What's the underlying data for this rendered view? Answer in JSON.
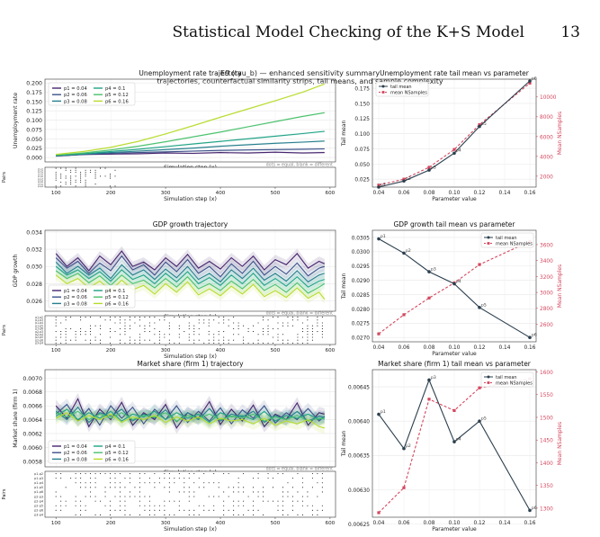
{
  "header": {
    "running_title": "Statistical Model Checking of the K+S Model",
    "page_number": "13"
  },
  "figure": {
    "title_line1": "E9 (tau_b) — enhanced sensitivity summary",
    "title_line2": "trajectories, counterfactual similarity strips, tail means, and sample complexity",
    "strip_legend": "dots = equal, blank = different",
    "strip_ylabel": "Pairs",
    "strip_pairs": [
      "p1-p2",
      "p1-p3",
      "p1-p4",
      "p1-p5",
      "p1-p6",
      "p2-p3",
      "p2-p4",
      "p2-p5",
      "p2-p6",
      "p3-p4"
    ],
    "step_label": "Simulation step (x)",
    "param_label": "Parameter value"
  },
  "colors": {
    "p1": "#46246e",
    "p2": "#3d528a",
    "p3": "#277f8e",
    "p4": "#20a386",
    "p5": "#4ac16d",
    "p6": "#b6dc2b",
    "tail": "#2b3f4e",
    "samples": "#d4465e"
  },
  "chart_data": [
    {
      "type": "line",
      "title": "Unemployment rate trajectory",
      "xlabel": "Simulation step (x)",
      "ylabel": "Unemployment rate",
      "xlim": [
        80,
        610
      ],
      "ylim": [
        -0.012,
        0.21
      ],
      "xticks": [
        "100",
        "200",
        "300",
        "400",
        "500",
        "600"
      ],
      "yticks": [
        "0.000",
        "0.025",
        "0.050",
        "0.075",
        "0.100",
        "0.125",
        "0.150",
        "0.175",
        "0.200"
      ],
      "ytick_values": [
        0,
        0.025,
        0.05,
        0.075,
        0.1,
        0.125,
        0.15,
        0.175,
        0.2
      ],
      "grid": true,
      "legend": "top-left",
      "x": [
        100,
        150,
        200,
        250,
        300,
        350,
        400,
        450,
        500,
        550,
        590
      ],
      "series": [
        {
          "name": "p1 = 0.04",
          "values": [
            0.004,
            0.008,
            0.009,
            0.01,
            0.012,
            0.011,
            0.013,
            0.012,
            0.014,
            0.012,
            0.013
          ]
        },
        {
          "name": "p2 = 0.06",
          "values": [
            0.004,
            0.008,
            0.011,
            0.013,
            0.015,
            0.017,
            0.019,
            0.02,
            0.021,
            0.022,
            0.023
          ]
        },
        {
          "name": "p3 = 0.08",
          "values": [
            0.005,
            0.009,
            0.013,
            0.017,
            0.021,
            0.025,
            0.03,
            0.034,
            0.038,
            0.041,
            0.044
          ]
        },
        {
          "name": "p4 = 0.1",
          "values": [
            0.005,
            0.01,
            0.016,
            0.022,
            0.029,
            0.036,
            0.043,
            0.05,
            0.057,
            0.064,
            0.07
          ]
        },
        {
          "name": "p5 = 0.12",
          "values": [
            0.006,
            0.012,
            0.02,
            0.03,
            0.042,
            0.055,
            0.068,
            0.082,
            0.096,
            0.11,
            0.12
          ]
        },
        {
          "name": "p6 = 0.16",
          "values": [
            0.008,
            0.016,
            0.027,
            0.043,
            0.063,
            0.085,
            0.108,
            0.13,
            0.152,
            0.175,
            0.197
          ]
        }
      ]
    },
    {
      "type": "line",
      "title": "Unemployment rate tail mean vs parameter",
      "xlabel": "Parameter value",
      "ylabel": "Tail mean",
      "y2label": "Mean NSamples",
      "xlim": [
        0.035,
        0.165
      ],
      "ylim": [
        0.012,
        0.19
      ],
      "y2lim": [
        900,
        11800
      ],
      "xticks": [
        "0.04",
        "0.06",
        "0.08",
        "0.10",
        "0.12",
        "0.14",
        "0.16"
      ],
      "yticks": [
        "0.025",
        "0.050",
        "0.075",
        "0.100",
        "0.125",
        "0.150",
        "0.175"
      ],
      "ytick_values": [
        0.025,
        0.05,
        0.075,
        0.1,
        0.125,
        0.15,
        0.175
      ],
      "y2ticks": [
        "2000",
        "4000",
        "6000",
        "8000",
        "10000"
      ],
      "y2tick_values": [
        2000,
        4000,
        6000,
        8000,
        10000
      ],
      "grid": true,
      "legend": "top-left",
      "legend_items": [
        "tail mean",
        "mean NSamples"
      ],
      "x": [
        0.04,
        0.06,
        0.08,
        0.1,
        0.12,
        0.16
      ],
      "point_labels": [
        "p1",
        "p2",
        "p3",
        "p4",
        "p5",
        "p6"
      ],
      "series": [
        {
          "name": "tail mean",
          "axis": "left",
          "values": [
            0.012,
            0.022,
            0.04,
            0.068,
            0.112,
            0.187
          ]
        },
        {
          "name": "mean NSamples",
          "axis": "right",
          "values": [
            1100,
            1700,
            2900,
            4700,
            7200,
            11400
          ]
        }
      ]
    },
    {
      "type": "line",
      "title": "GDP growth trajectory",
      "xlabel": "Simulation step (x)",
      "ylabel": "GDP growth",
      "xlim": [
        80,
        610
      ],
      "ylim": [
        0.0248,
        0.0342
      ],
      "xticks": [
        "100",
        "200",
        "300",
        "400",
        "500",
        "600"
      ],
      "yticks": [
        "0.026",
        "0.028",
        "0.030",
        "0.032",
        "0.034"
      ],
      "ytick_values": [
        0.026,
        0.028,
        0.03,
        0.032,
        0.034
      ],
      "grid": true,
      "legend": "bottom-left",
      "x": [
        100,
        120,
        140,
        160,
        180,
        200,
        220,
        240,
        260,
        280,
        300,
        320,
        340,
        360,
        380,
        400,
        420,
        440,
        460,
        480,
        500,
        520,
        540,
        560,
        580,
        590
      ],
      "series": [
        {
          "name": "p1 = 0.04",
          "values": [
            0.0315,
            0.03,
            0.031,
            0.0295,
            0.0312,
            0.0302,
            0.0318,
            0.03,
            0.0305,
            0.0296,
            0.031,
            0.03,
            0.0314,
            0.0298,
            0.0306,
            0.0297,
            0.031,
            0.03,
            0.0312,
            0.0296,
            0.0308,
            0.0302,
            0.0315,
            0.0298,
            0.0306,
            0.0303
          ]
        },
        {
          "name": "p2 = 0.06",
          "values": [
            0.031,
            0.0298,
            0.0306,
            0.0292,
            0.0304,
            0.0295,
            0.0312,
            0.0296,
            0.0302,
            0.029,
            0.0305,
            0.0294,
            0.0308,
            0.0292,
            0.03,
            0.0288,
            0.0303,
            0.0292,
            0.0306,
            0.029,
            0.03,
            0.0291,
            0.0304,
            0.0289,
            0.0298,
            0.03
          ]
        },
        {
          "name": "p3 = 0.08",
          "values": [
            0.0305,
            0.0292,
            0.03,
            0.029,
            0.0298,
            0.0286,
            0.0302,
            0.029,
            0.0296,
            0.0285,
            0.0297,
            0.0287,
            0.03,
            0.0285,
            0.0292,
            0.0282,
            0.0296,
            0.0286,
            0.0298,
            0.0284,
            0.0292,
            0.0283,
            0.0295,
            0.0282,
            0.029,
            0.0292
          ]
        },
        {
          "name": "p4 = 0.1",
          "values": [
            0.03,
            0.029,
            0.0296,
            0.0286,
            0.0294,
            0.0283,
            0.0296,
            0.0285,
            0.029,
            0.028,
            0.0292,
            0.0282,
            0.0294,
            0.028,
            0.0287,
            0.0278,
            0.029,
            0.028,
            0.0292,
            0.0278,
            0.0286,
            0.0277,
            0.0288,
            0.0276,
            0.0283,
            0.0285
          ]
        },
        {
          "name": "p5 = 0.12",
          "values": [
            0.0295,
            0.0286,
            0.0292,
            0.0281,
            0.0289,
            0.0278,
            0.029,
            0.028,
            0.0284,
            0.0275,
            0.0286,
            0.0276,
            0.0288,
            0.0274,
            0.028,
            0.0272,
            0.0283,
            0.0274,
            0.0285,
            0.0272,
            0.0279,
            0.027,
            0.0281,
            0.0269,
            0.0276,
            0.028
          ]
        },
        {
          "name": "p6 = 0.16",
          "values": [
            0.029,
            0.028,
            0.0286,
            0.0275,
            0.0283,
            0.0272,
            0.0284,
            0.0273,
            0.0278,
            0.0268,
            0.028,
            0.027,
            0.0282,
            0.0267,
            0.0274,
            0.0266,
            0.0277,
            0.0268,
            0.0279,
            0.0265,
            0.0272,
            0.0264,
            0.0275,
            0.0263,
            0.027,
            0.0262
          ]
        }
      ]
    },
    {
      "type": "line",
      "title": "GDP growth tail mean vs parameter",
      "xlabel": "Parameter value",
      "ylabel": "Tail mean",
      "y2label": "Mean NSamples",
      "xlim": [
        0.035,
        0.165
      ],
      "ylim": [
        0.02685,
        0.03075
      ],
      "y2lim": [
        2380,
        3780
      ],
      "xticks": [
        "0.04",
        "0.06",
        "0.08",
        "0.10",
        "0.12",
        "0.14",
        "0.16"
      ],
      "yticks": [
        "0.0270",
        "0.0275",
        "0.0280",
        "0.0285",
        "0.0290",
        "0.0295",
        "0.0300",
        "0.0305"
      ],
      "ytick_values": [
        0.027,
        0.0275,
        0.028,
        0.0285,
        0.029,
        0.0295,
        0.03,
        0.0305
      ],
      "y2ticks": [
        "2600",
        "2800",
        "3000",
        "3200",
        "3400",
        "3600"
      ],
      "y2tick_values": [
        2600,
        2800,
        3000,
        3200,
        3400,
        3600
      ],
      "grid": true,
      "legend": "top-right",
      "legend_items": [
        "tail mean",
        "mean NSamples"
      ],
      "x": [
        0.04,
        0.06,
        0.08,
        0.1,
        0.12,
        0.16
      ],
      "point_labels": [
        "p1",
        "p2",
        "p3",
        "p4",
        "p5",
        "p6"
      ],
      "series": [
        {
          "name": "tail mean",
          "axis": "left",
          "values": [
            0.03045,
            0.02995,
            0.0293,
            0.02888,
            0.02805,
            0.027
          ]
        },
        {
          "name": "mean NSamples",
          "axis": "right",
          "values": [
            2480,
            2720,
            2930,
            3120,
            3350,
            3640
          ]
        }
      ]
    },
    {
      "type": "line",
      "title": "Market share (firm 1) trajectory",
      "xlabel": "Simulation step (x)",
      "ylabel": "Market share (firm 1)",
      "xlim": [
        80,
        610
      ],
      "ylim": [
        0.00572,
        0.00712
      ],
      "xticks": [
        "100",
        "200",
        "300",
        "400",
        "500",
        "600"
      ],
      "yticks": [
        "0.0058",
        "0.0060",
        "0.0062",
        "0.0064",
        "0.0066",
        "0.0068",
        "0.0070"
      ],
      "ytick_values": [
        0.0058,
        0.006,
        0.0062,
        0.0064,
        0.0066,
        0.0068,
        0.007
      ],
      "grid": true,
      "legend": "bottom-left",
      "x": [
        100,
        120,
        140,
        160,
        180,
        200,
        220,
        240,
        260,
        280,
        300,
        320,
        340,
        360,
        380,
        400,
        420,
        440,
        460,
        480,
        500,
        520,
        540,
        560,
        580,
        590
      ],
      "series": [
        {
          "name": "p1 = 0.04",
          "values": [
            0.0066,
            0.00642,
            0.0067,
            0.0063,
            0.00655,
            0.0064,
            0.00665,
            0.00632,
            0.0065,
            0.0064,
            0.00662,
            0.00628,
            0.0065,
            0.00642,
            0.00666,
            0.00633,
            0.00655,
            0.00638,
            0.00661,
            0.0063,
            0.00648,
            0.0064,
            0.00664,
            0.00632,
            0.0065,
            0.00648
          ]
        },
        {
          "name": "p2 = 0.06",
          "values": [
            0.00648,
            0.00662,
            0.00638,
            0.00656,
            0.00632,
            0.0066,
            0.00642,
            0.00658,
            0.00634,
            0.00655,
            0.0064,
            0.0066,
            0.00636,
            0.00652,
            0.00638,
            0.00657,
            0.00634,
            0.00654,
            0.00642,
            0.0066,
            0.00635,
            0.0065,
            0.0064,
            0.00656,
            0.00638,
            0.00645
          ]
        },
        {
          "name": "p3 = 0.08",
          "values": [
            0.00652,
            0.0064,
            0.00658,
            0.00636,
            0.0065,
            0.00645,
            0.00655,
            0.00638,
            0.00648,
            0.00642,
            0.00654,
            0.00637,
            0.0065,
            0.0064,
            0.00656,
            0.00638,
            0.00648,
            0.00644,
            0.00652,
            0.00636,
            0.00646,
            0.0064,
            0.00652,
            0.00638,
            0.00645,
            0.00643
          ]
        },
        {
          "name": "p4 = 0.1",
          "values": [
            0.00645,
            0.00655,
            0.0064,
            0.0065,
            0.00642,
            0.00652,
            0.00638,
            0.00648,
            0.00644,
            0.00652,
            0.0064,
            0.0065,
            0.00642,
            0.00648,
            0.00636,
            0.0065,
            0.00644,
            0.00646,
            0.0064,
            0.00652,
            0.00638,
            0.00646,
            0.00642,
            0.00648,
            0.0064,
            0.00644
          ]
        },
        {
          "name": "p5 = 0.12",
          "values": [
            0.0065,
            0.00644,
            0.00652,
            0.0064,
            0.00648,
            0.00642,
            0.0065,
            0.0064,
            0.00646,
            0.00644,
            0.0065,
            0.00638,
            0.00646,
            0.00642,
            0.00648,
            0.0064,
            0.00645,
            0.00642,
            0.00648,
            0.00638,
            0.00644,
            0.0064,
            0.00646,
            0.00638,
            0.00642,
            0.00641
          ]
        },
        {
          "name": "p6 = 0.16",
          "values": [
            0.00642,
            0.0065,
            0.00638,
            0.00646,
            0.0064,
            0.00648,
            0.00636,
            0.00644,
            0.0064,
            0.00646,
            0.00636,
            0.00644,
            0.00638,
            0.00644,
            0.00634,
            0.00642,
            0.00638,
            0.0064,
            0.00634,
            0.00642,
            0.00632,
            0.00638,
            0.00634,
            0.0064,
            0.0063,
            0.00628
          ]
        }
      ]
    },
    {
      "type": "line",
      "title": "Market share (firm 1) tail mean vs parameter",
      "xlabel": "Parameter value",
      "ylabel": "Tail mean",
      "y2label": "Mean NSamples",
      "xlim": [
        0.035,
        0.165
      ],
      "ylim": [
        0.00626,
        0.006475
      ],
      "y2lim": [
        1280,
        1605
      ],
      "xticks": [
        "0.04",
        "0.06",
        "0.08",
        "0.10",
        "0.12",
        "0.14",
        "0.16"
      ],
      "yticks": [
        "0.00625",
        "0.00630",
        "0.00635",
        "0.00640",
        "0.00645"
      ],
      "ytick_values": [
        0.00625,
        0.0063,
        0.00635,
        0.0064,
        0.00645
      ],
      "y2ticks": [
        "1300",
        "1350",
        "1400",
        "1450",
        "1500",
        "1550",
        "1600"
      ],
      "y2tick_values": [
        1300,
        1350,
        1400,
        1450,
        1500,
        1550,
        1600
      ],
      "grid": true,
      "legend": "top-right",
      "legend_items": [
        "tail mean",
        "mean NSamples"
      ],
      "x": [
        0.04,
        0.06,
        0.08,
        0.1,
        0.12,
        0.16
      ],
      "point_labels": [
        "p1",
        "p2",
        "p3",
        "p4",
        "p5",
        "p6"
      ],
      "series": [
        {
          "name": "tail mean",
          "axis": "left",
          "values": [
            0.00641,
            0.00636,
            0.00646,
            0.00637,
            0.0064,
            0.00627
          ]
        },
        {
          "name": "mean NSamples",
          "axis": "right",
          "values": [
            1290,
            1345,
            1540,
            1515,
            1565,
            1585
          ]
        }
      ]
    }
  ]
}
